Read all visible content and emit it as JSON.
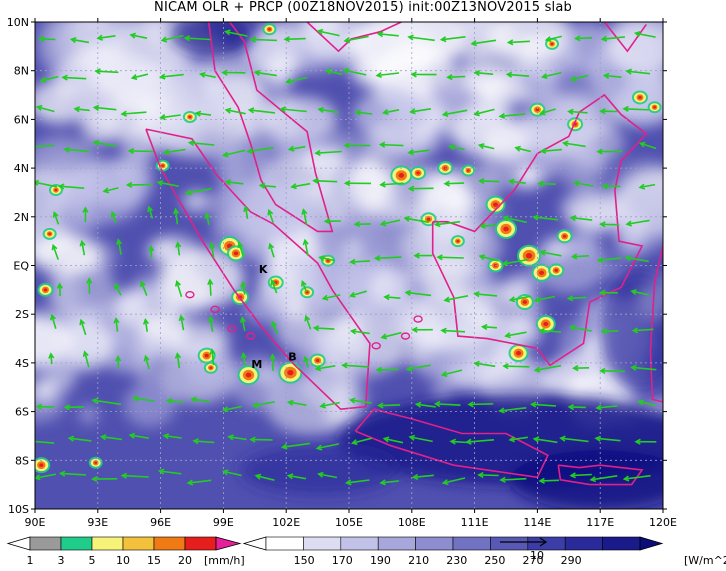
{
  "title": "NICAM OLR + PRCP (00Z18NOV2015) init:00Z13NOV2015 slab",
  "map": {
    "lat_labels": [
      "10N",
      "8N",
      "6N",
      "4N",
      "2N",
      "EQ",
      "2S",
      "4S",
      "6S",
      "8S",
      "10S"
    ],
    "lon_labels": [
      "90E",
      "93E",
      "96E",
      "99E",
      "102E",
      "105E",
      "108E",
      "111E",
      "114E",
      "117E",
      "120E"
    ],
    "lat_range": [
      -10,
      10
    ],
    "lon_range": [
      90,
      120
    ],
    "point_labels": [
      {
        "text": "K",
        "lon": 100.9,
        "lat": -0.3
      },
      {
        "text": "M",
        "lon": 100.6,
        "lat": -4.2
      },
      {
        "text": "B",
        "lon": 102.3,
        "lat": -3.9
      }
    ],
    "vector_color": "#22cc22",
    "coast_color": "#e0218a"
  },
  "prcp_colorbar": {
    "labels": [
      "1",
      "3",
      "5",
      "10",
      "15",
      "20"
    ],
    "unit": "[mm/h]",
    "colors": [
      "#9a9a9a",
      "#1fcc8a",
      "#f6f27a",
      "#f4c13c",
      "#f07a14",
      "#e61e1e",
      "#e6209a"
    ]
  },
  "olr_colorbar": {
    "labels": [
      "150",
      "170",
      "190",
      "210",
      "230",
      "250",
      "270",
      "290"
    ],
    "unit": "[W/m^2]",
    "colors": [
      "#ffffff",
      "#dcdcf2",
      "#c2c2e8",
      "#a7a7dc",
      "#8d8dcf",
      "#7272c2",
      "#5858b5",
      "#3d3da8",
      "#2a2a9a",
      "#1a1a8a",
      "#0c0c7a"
    ],
    "reference_vector_label": "10"
  }
}
